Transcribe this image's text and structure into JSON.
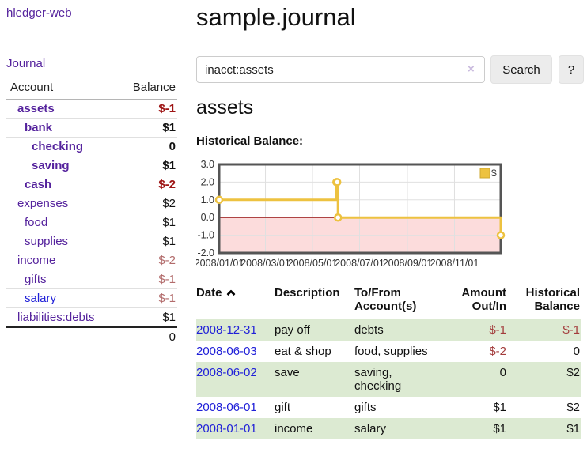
{
  "app": {
    "title": "hledger-web"
  },
  "sidebar": {
    "journal_label": "Journal",
    "accounts": {
      "header_account": "Account",
      "header_balance": "Balance",
      "rows": [
        {
          "name": "assets",
          "balance": "$-1",
          "level": 0,
          "bold": true,
          "negative": true,
          "link_style": "purple"
        },
        {
          "name": "bank",
          "balance": "$1",
          "level": 1,
          "bold": true,
          "negative": false,
          "link_style": "purple"
        },
        {
          "name": "checking",
          "balance": "0",
          "level": 2,
          "bold": true,
          "negative": false,
          "link_style": "purple"
        },
        {
          "name": "saving",
          "balance": "$1",
          "level": 2,
          "bold": true,
          "negative": false,
          "link_style": "purple"
        },
        {
          "name": "cash",
          "balance": "$-2",
          "level": 1,
          "bold": true,
          "negative": true,
          "link_style": "purple"
        },
        {
          "name": "expenses",
          "balance": "$2",
          "level": 0,
          "bold": false,
          "negative": false,
          "link_style": "purple"
        },
        {
          "name": "food",
          "balance": "$1",
          "level": 1,
          "bold": false,
          "negative": false,
          "link_style": "purple"
        },
        {
          "name": "supplies",
          "balance": "$1",
          "level": 1,
          "bold": false,
          "negative": false,
          "link_style": "purple"
        },
        {
          "name": "income",
          "balance": "$-2",
          "level": 0,
          "bold": false,
          "negative": true,
          "link_style": "purple"
        },
        {
          "name": "gifts",
          "balance": "$-1",
          "level": 1,
          "bold": false,
          "negative": true,
          "link_style": "purple"
        },
        {
          "name": "salary",
          "balance": "$-1",
          "level": 1,
          "bold": false,
          "negative": true,
          "link_style": "blue"
        },
        {
          "name": "liabilities:debts",
          "balance": "$1",
          "level": 0,
          "bold": false,
          "negative": false,
          "link_style": "purple"
        }
      ],
      "total": "0"
    }
  },
  "main": {
    "title": "sample.journal",
    "search": {
      "value": "inacct:assets",
      "clear_icon": "×",
      "button_label": "Search",
      "help_label": "?"
    },
    "account_heading": "assets",
    "chart_heading": "Historical Balance:"
  },
  "chart_data": {
    "type": "line",
    "step": true,
    "title": "Historical Balance",
    "legend": "$",
    "legend_position": "top-right",
    "grid": true,
    "line_color": "#edc240",
    "marker_style": "open-circle",
    "negative_region_color": "#fcdcdc",
    "zero_line_color": "#991111",
    "xlim": [
      "2008-01-01",
      "2008-12-31"
    ],
    "ylim": [
      -2,
      3
    ],
    "yticks": [
      "3.0",
      "2.0",
      "1.0",
      "0.0",
      "-1.0",
      "-2.0"
    ],
    "xticks": [
      "2008/01/01",
      "2008/03/01",
      "2008/05/01",
      "2008/07/01",
      "2008/09/01",
      "2008/11/01"
    ],
    "series": [
      {
        "name": "$",
        "points": [
          [
            "2008-01-01",
            1
          ],
          [
            "2008-06-01",
            2
          ],
          [
            "2008-06-02",
            2
          ],
          [
            "2008-06-03",
            0
          ],
          [
            "2008-12-31",
            -1
          ]
        ]
      }
    ]
  },
  "register": {
    "headers": {
      "date": "Date",
      "description": "Description",
      "accounts": "To/From Account(s)",
      "amount": "Amount Out/In",
      "balance": "Historical Balance"
    },
    "rows": [
      {
        "date": "2008-12-31",
        "description": "pay off",
        "accounts": "debts",
        "amount": "$-1",
        "amount_negative": true,
        "balance": "$-1",
        "balance_negative": true
      },
      {
        "date": "2008-06-03",
        "description": "eat & shop",
        "accounts": "food, supplies",
        "amount": "$-2",
        "amount_negative": true,
        "balance": "0",
        "balance_negative": false
      },
      {
        "date": "2008-06-02",
        "description": "save",
        "accounts": "saving, checking",
        "amount": "0",
        "amount_negative": false,
        "balance": "$2",
        "balance_negative": false
      },
      {
        "date": "2008-06-01",
        "description": "gift",
        "accounts": "gifts",
        "amount": "$1",
        "amount_negative": false,
        "balance": "$2",
        "balance_negative": false
      },
      {
        "date": "2008-01-01",
        "description": "income",
        "accounts": "salary",
        "amount": "$1",
        "amount_negative": false,
        "balance": "$1",
        "balance_negative": false
      }
    ]
  }
}
